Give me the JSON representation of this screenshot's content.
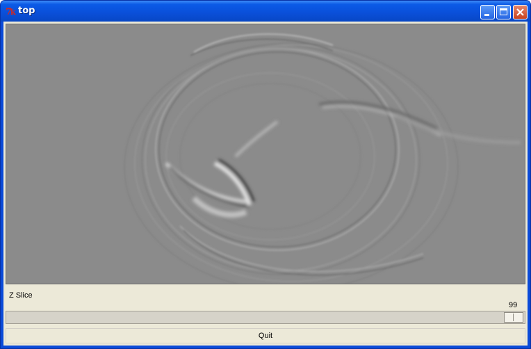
{
  "window": {
    "title": "top",
    "app_icon": "tk-feather-icon",
    "controls": [
      "minimize",
      "maximize",
      "close"
    ]
  },
  "viewport": {
    "description_icon": "seismic-wave-image",
    "background_color": "#8a8a8a"
  },
  "slice": {
    "label": "Z Slice",
    "value": "99"
  },
  "quit": {
    "label": "Quit"
  },
  "colors": {
    "titlebar": "#0a4fd9",
    "close_button": "#c8431f",
    "client": "#ece9d8"
  }
}
